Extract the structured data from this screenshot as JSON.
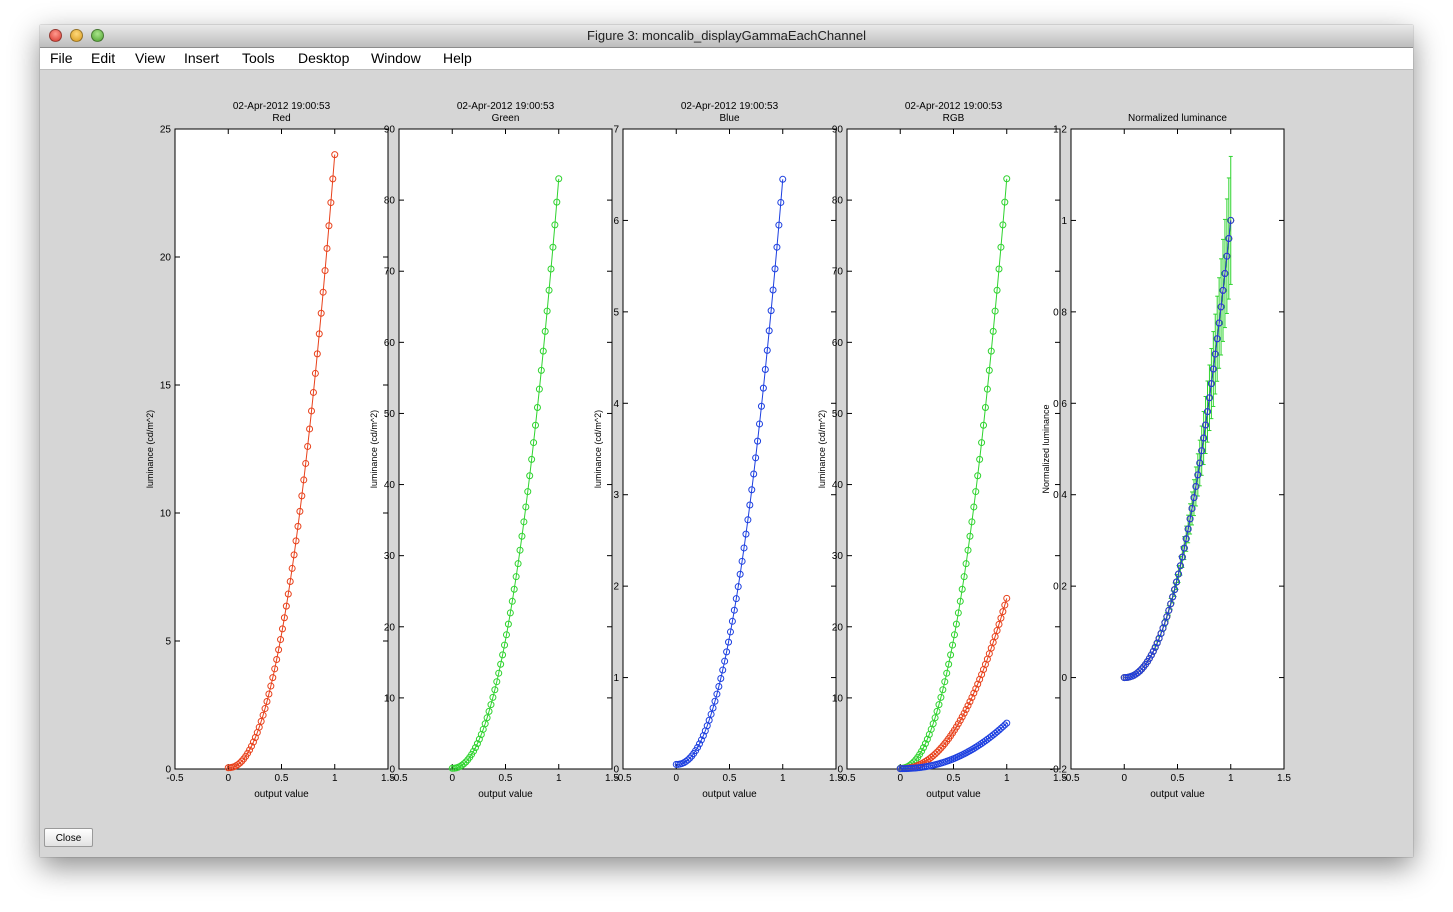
{
  "window": {
    "title": "Figure 3: moncalib_displayGammaEachChannel",
    "close_button_label": "Close"
  },
  "menu": [
    "File",
    "Edit",
    "View",
    "Insert",
    "Tools",
    "Desktop",
    "Window",
    "Help"
  ],
  "colors": {
    "red": "#e8411b",
    "green": "#2fd32f",
    "blue": "#1c3fe0",
    "figure_bg": "#d6d6d6"
  },
  "chart_data": [
    {
      "type": "line",
      "timestamp": "02-Apr-2012 19:00:53",
      "title": "Red",
      "xlabel": "output value",
      "ylabel": "luminance (cd/m^2)",
      "xlim": [
        -0.5,
        1.5
      ],
      "ylim": [
        0,
        25
      ],
      "xticks": [
        -0.5,
        0,
        0.5,
        1,
        1.5
      ],
      "yticks": [
        0,
        5,
        10,
        15,
        20,
        25
      ],
      "grid": false,
      "series": [
        {
          "color": "red",
          "marker": "circle",
          "curve": {
            "n": 56,
            "y0": 0.05,
            "y1": 24.0,
            "gamma": 2.2
          }
        }
      ]
    },
    {
      "type": "line",
      "timestamp": "02-Apr-2012 19:00:53",
      "title": "Green",
      "xlabel": "output value",
      "ylabel": "luminance (cd/m^2)",
      "xlim": [
        -0.5,
        1.5
      ],
      "ylim": [
        0,
        90
      ],
      "xticks": [
        -0.5,
        0,
        0.5,
        1,
        1.5
      ],
      "yticks": [
        0,
        10,
        20,
        30,
        40,
        50,
        60,
        70,
        80,
        90
      ],
      "grid": false,
      "series": [
        {
          "color": "green",
          "marker": "circle",
          "curve": {
            "n": 56,
            "y0": 0.1,
            "y1": 83.0,
            "gamma": 2.2
          }
        }
      ]
    },
    {
      "type": "line",
      "timestamp": "02-Apr-2012 19:00:53",
      "title": "Blue",
      "xlabel": "output value",
      "ylabel": "luminance (cd/m^2)",
      "xlim": [
        -0.5,
        1.5
      ],
      "ylim": [
        0,
        7
      ],
      "xticks": [
        -0.5,
        0,
        0.5,
        1,
        1.5
      ],
      "yticks": [
        0,
        1,
        2,
        3,
        4,
        5,
        6,
        7
      ],
      "grid": false,
      "series": [
        {
          "color": "blue",
          "marker": "circle",
          "curve": {
            "n": 56,
            "y0": 0.05,
            "y1": 6.45,
            "gamma": 2.2
          }
        }
      ]
    },
    {
      "type": "line",
      "timestamp": "02-Apr-2012 19:00:53",
      "title": "RGB",
      "xlabel": "output value",
      "ylabel": "luminance (cd/m^2)",
      "xlim": [
        -0.5,
        1.5
      ],
      "ylim": [
        0,
        90
      ],
      "xticks": [
        -0.5,
        0,
        0.5,
        1,
        1.5
      ],
      "yticks": [
        0,
        10,
        20,
        30,
        40,
        50,
        60,
        70,
        80,
        90
      ],
      "grid": false,
      "series": [
        {
          "color": "green",
          "marker": "circle",
          "curve": {
            "n": 56,
            "y0": 0.1,
            "y1": 83.0,
            "gamma": 2.2
          }
        },
        {
          "color": "red",
          "marker": "circle",
          "curve": {
            "n": 56,
            "y0": 0.05,
            "y1": 24.0,
            "gamma": 2.2
          }
        },
        {
          "color": "blue",
          "marker": "circle",
          "curve": {
            "n": 56,
            "y0": 0.05,
            "y1": 6.45,
            "gamma": 2.2
          }
        }
      ]
    },
    {
      "type": "line",
      "timestamp": "",
      "title": "Normalized luminance",
      "xlabel": "output value",
      "ylabel": "Normalized luminance",
      "xlim": [
        -0.5,
        1.5
      ],
      "ylim": [
        -0.2,
        1.2
      ],
      "xticks": [
        -0.5,
        0,
        0.5,
        1,
        1.5
      ],
      "yticks": [
        -0.2,
        0,
        0.2,
        0.4,
        0.6,
        0.8,
        1,
        1.2
      ],
      "grid": false,
      "series": [
        {
          "color": "green",
          "marker": "circle",
          "errorbars": true,
          "error_max": 0.14,
          "curve": {
            "n": 56,
            "y0": 0,
            "y1": 1.0,
            "gamma": 2.2
          }
        },
        {
          "color": "red",
          "marker": "circle",
          "curve": {
            "n": 56,
            "y0": 0,
            "y1": 1.0,
            "gamma": 2.2
          }
        },
        {
          "color": "blue",
          "marker": "circle",
          "curve": {
            "n": 56,
            "y0": 0,
            "y1": 1.0,
            "gamma": 2.2
          }
        }
      ]
    }
  ]
}
